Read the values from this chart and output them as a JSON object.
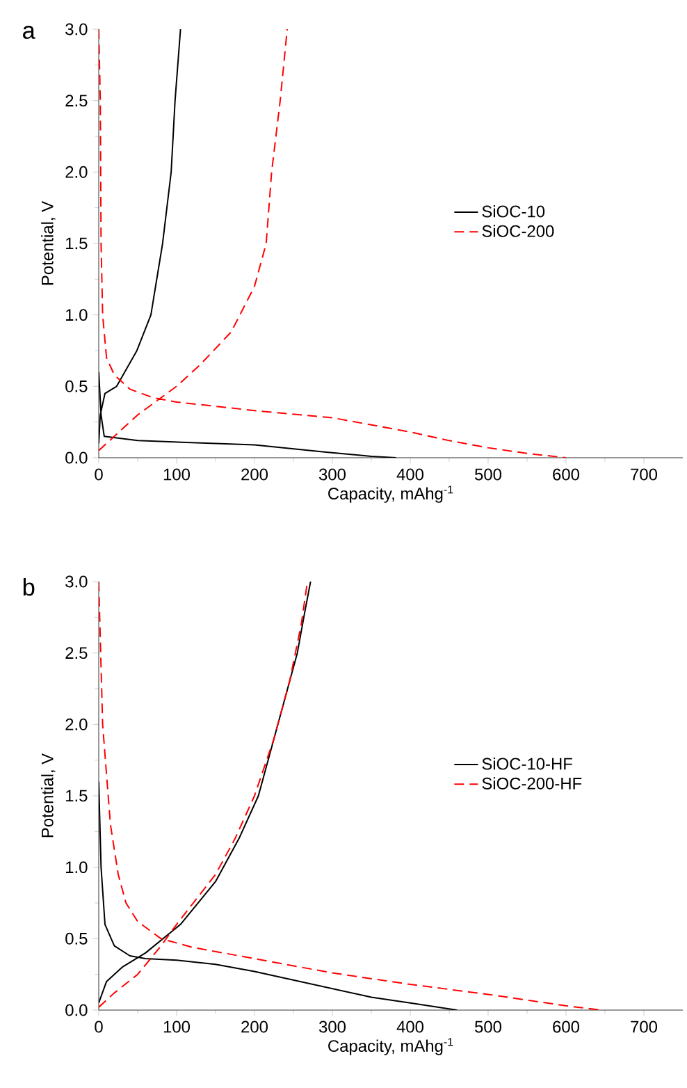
{
  "chart_data": [
    {
      "type": "line",
      "title": "a",
      "xlabel": "Capacity, mAhg$^{-1}$",
      "ylabel": "Potential, V",
      "xlim": [
        0,
        750
      ],
      "ylim": [
        0,
        3.0
      ],
      "xticks": [
        0,
        100,
        200,
        300,
        400,
        500,
        600,
        700
      ],
      "yticks": [
        {
          "value": 0,
          "label": "0.0"
        },
        {
          "value": 0.5,
          "label": "0.5"
        },
        {
          "value": 1,
          "label": "1.0"
        },
        {
          "value": 1.5,
          "label": "1.5"
        },
        {
          "value": 2,
          "label": "2.0"
        },
        {
          "value": 2.5,
          "label": "2.5"
        },
        {
          "value": 3,
          "label": "3.0"
        }
      ],
      "legend": "right",
      "grid": false,
      "series": [
        {
          "name": "SiOC-10",
          "color": "#000000",
          "line_style": "solid",
          "x": [
            0,
            3,
            7,
            50,
            200,
            290,
            350,
            382,
            null,
            0,
            2,
            8,
            23,
            49,
            67,
            82,
            93,
            98,
            105
          ],
          "values": [
            0.6,
            0.3,
            0.15,
            0.12,
            0.09,
            0.04,
            0.01,
            0,
            null,
            0.1,
            0.3,
            0.45,
            0.5,
            0.75,
            1.0,
            1.5,
            2.0,
            2.5,
            3.0
          ]
        },
        {
          "name": "SiOC-200",
          "color": "#ff0000",
          "line_style": "dashed",
          "x": [
            0,
            2,
            3,
            5,
            10,
            20,
            40,
            70,
            100,
            150,
            200,
            300,
            350,
            400,
            450,
            500,
            550,
            600,
            null,
            0,
            20,
            50,
            80,
            100,
            130,
            170,
            200,
            215,
            222,
            233,
            242
          ],
          "values": [
            3.0,
            2.5,
            1.5,
            1.0,
            0.7,
            0.58,
            0.48,
            0.42,
            0.39,
            0.36,
            0.33,
            0.28,
            0.23,
            0.18,
            0.12,
            0.07,
            0.03,
            0,
            null,
            0.05,
            0.15,
            0.3,
            0.42,
            0.5,
            0.65,
            0.88,
            1.2,
            1.5,
            2.0,
            2.5,
            3.0
          ]
        }
      ]
    },
    {
      "type": "line",
      "title": "b",
      "xlabel": "Capacity, mAhg$^{-1}$",
      "ylabel": "Potential, V",
      "xlim": [
        0,
        750
      ],
      "ylim": [
        0,
        3.0
      ],
      "xticks": [
        0,
        100,
        200,
        300,
        400,
        500,
        600,
        700
      ],
      "yticks": [
        {
          "value": 0,
          "label": "0.0"
        },
        {
          "value": 0.5,
          "label": "0.5"
        },
        {
          "value": 1,
          "label": "1.0"
        },
        {
          "value": 1.5,
          "label": "1.5"
        },
        {
          "value": 2,
          "label": "2.0"
        },
        {
          "value": 2.5,
          "label": "2.5"
        },
        {
          "value": 3,
          "label": "3.0"
        }
      ],
      "legend": "right",
      "grid": false,
      "series": [
        {
          "name": "SiOC-10-HF",
          "color": "#000000",
          "line_style": "solid",
          "x": [
            0,
            3,
            8,
            20,
            40,
            60,
            100,
            150,
            200,
            250,
            300,
            350,
            400,
            460,
            null,
            0,
            10,
            30,
            60,
            105,
            150,
            180,
            205,
            220,
            240,
            255,
            265,
            272
          ],
          "values": [
            1.6,
            1.0,
            0.6,
            0.45,
            0.38,
            0.36,
            0.35,
            0.32,
            0.27,
            0.21,
            0.15,
            0.09,
            0.05,
            0,
            null,
            0.05,
            0.2,
            0.3,
            0.4,
            0.6,
            0.9,
            1.2,
            1.5,
            1.8,
            2.2,
            2.5,
            2.8,
            3.0
          ]
        },
        {
          "name": "SiOC-200-HF",
          "color": "#ff0000",
          "line_style": "dashed",
          "x": [
            0,
            5,
            15,
            25,
            35,
            50,
            80,
            120,
            200,
            300,
            400,
            500,
            600,
            645,
            null,
            0,
            20,
            50,
            80,
            100,
            150,
            175,
            200,
            225,
            245,
            260,
            268
          ],
          "values": [
            3.0,
            2.0,
            1.3,
            0.95,
            0.75,
            0.62,
            0.5,
            0.44,
            0.36,
            0.26,
            0.18,
            0.11,
            0.03,
            0,
            null,
            0.02,
            0.12,
            0.25,
            0.45,
            0.6,
            0.95,
            1.2,
            1.5,
            1.9,
            2.3,
            2.7,
            3.0
          ]
        }
      ]
    }
  ]
}
